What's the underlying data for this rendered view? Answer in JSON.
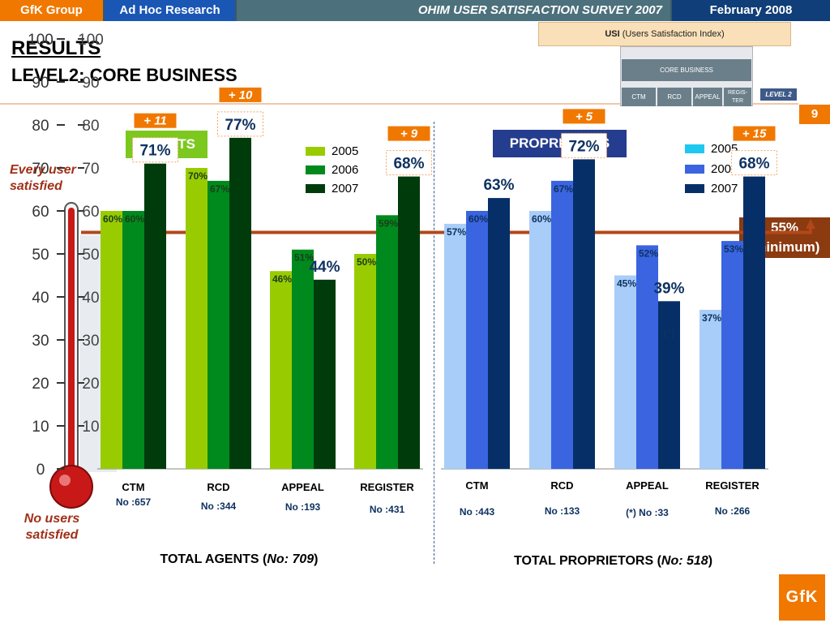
{
  "header": {
    "brand": "GfK Group",
    "section": "Ad Hoc Research",
    "survey": "OHIM USER SATISFACTION SURVEY 2007",
    "date": "February  2008"
  },
  "title": {
    "line1": "RESULTS",
    "line2": "LEVEL2: CORE BUSINESS"
  },
  "page_number": "9",
  "usi_diagram": {
    "top_bold": "USI",
    "top_rest": " (Users Satisfaction Index)",
    "core": "CORE BUSINESS",
    "subs": [
      "CTM",
      "RCD",
      "APPEAL",
      "REGIS-TER"
    ],
    "level": "LEVEL 2"
  },
  "thermometer": {
    "top_label": "Every user satisfied",
    "bottom_label": "No users satisfied",
    "scale_outer": [
      "100",
      "90",
      "80",
      "70",
      "60",
      "50",
      "40",
      "30",
      "20",
      "10",
      "0"
    ],
    "scale_inner": [
      "100",
      "90",
      "80",
      "70",
      "60",
      "50",
      "40",
      "30",
      "20",
      "10",
      "0"
    ],
    "colors": {
      "tube": "#c81818",
      "bulb": "#c81818",
      "glass": "#e8ecf0"
    }
  },
  "minimum": {
    "line1": "55%",
    "line2": "(minimum)",
    "value": 55,
    "color": "#b0481a"
  },
  "agents_badge": "AGENTS",
  "proprietors_badge": "PROPRIETORS",
  "totals": {
    "agents_prefix": "TOTAL AGENTS  (",
    "agents_count": "No: 709",
    "agents_suffix": ")",
    "proprietors_prefix": "TOTAL PROPRIETORS  (",
    "proprietors_count": "No: 518",
    "proprietors_suffix": ")"
  },
  "logo": "GfK",
  "chart_data": [
    {
      "type": "bar",
      "categories": [
        "CTM",
        "RCD",
        "APPEAL",
        "REGISTER"
      ],
      "sample_sizes": [
        "No  :657",
        "No :344",
        "No :193",
        "No :431"
      ],
      "series": [
        {
          "name": "2005",
          "values": [
            60,
            70,
            46,
            50
          ],
          "labels": [
            "60%",
            "70%",
            "46%",
            "50%"
          ],
          "color": "#99cc00"
        },
        {
          "name": "2006",
          "values": [
            60,
            67,
            51,
            59
          ],
          "labels": [
            "60%",
            "67%",
            "51%",
            "59%"
          ],
          "color": "#008a1e"
        },
        {
          "name": "2007",
          "values": [
            71,
            77,
            44,
            68
          ],
          "labels": [
            "71%",
            "77%",
            "44%",
            "68%"
          ],
          "color": "#003b0c"
        }
      ],
      "changes": [
        "+ 11",
        "+ 10",
        "",
        "+ 9"
      ],
      "notes": [
        "",
        "",
        "",
        ""
      ],
      "ylim": [
        0,
        100
      ]
    },
    {
      "type": "bar",
      "categories": [
        "CTM",
        "RCD",
        "APPEAL",
        "REGISTER"
      ],
      "sample_sizes": [
        "No :443",
        "No :133",
        "(*) No :33",
        "No :266"
      ],
      "series": [
        {
          "name": "2005",
          "values": [
            57,
            60,
            45,
            37
          ],
          "labels": [
            "57%",
            "60%",
            "45%",
            "37%"
          ],
          "color": "#a8cdf8"
        },
        {
          "name": "2006",
          "values": [
            60,
            67,
            52,
            53
          ],
          "labels": [
            "60%",
            "67%",
            "52%",
            "53%"
          ],
          "color": "#3a64e0"
        },
        {
          "name": "2007",
          "values": [
            63,
            72,
            39,
            68
          ],
          "labels": [
            "63%",
            "72%",
            "39%",
            "68%"
          ],
          "color": "#062f68"
        }
      ],
      "changes": [
        "",
        "+ 5",
        "",
        "+ 15"
      ],
      "notes": [
        "",
        "",
        "(*)",
        ""
      ],
      "ylim": [
        0,
        100
      ]
    }
  ]
}
